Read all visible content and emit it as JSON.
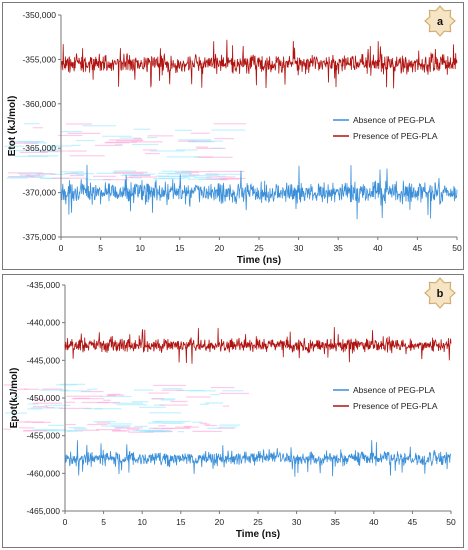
{
  "chart_data": [
    {
      "panel": "a",
      "type": "line",
      "badge": "a",
      "xlabel": "Time (ns)",
      "ylabel": "Etot (kJ/mol)",
      "xlim": [
        0,
        50
      ],
      "ylim": [
        -375000,
        -350000
      ],
      "xticks": [
        0,
        5,
        10,
        15,
        20,
        25,
        30,
        35,
        40,
        45,
        50
      ],
      "xtick_labels": [
        "0",
        "5",
        "10",
        "15",
        "20",
        "25",
        "30",
        "35",
        "40",
        "45",
        "50"
      ],
      "yticks": [
        -350000,
        -355000,
        -360000,
        -365000,
        -370000,
        -375000
      ],
      "ytick_labels": [
        "-350,000",
        "-355,000",
        "-360,000",
        "-365,000",
        "-370,000",
        "-375,000"
      ],
      "legend_position": "right",
      "series": [
        {
          "name": "Absence of PEG-PLA",
          "color": "#3b8fd9",
          "mean": -370000,
          "spread": 900,
          "min": -373000,
          "max": -366500
        },
        {
          "name": "Presence of PEG-PLA",
          "color": "#b0120f",
          "mean": -355500,
          "spread": 800,
          "min": -358500,
          "max": -352000
        }
      ]
    },
    {
      "panel": "b",
      "type": "line",
      "badge": "b",
      "xlabel": "Time (ns)",
      "ylabel": "Epot(kJ/mol)",
      "xlim": [
        0,
        50
      ],
      "ylim": [
        -465000,
        -435000
      ],
      "xticks": [
        0,
        5,
        10,
        15,
        20,
        25,
        30,
        35,
        40,
        45,
        50
      ],
      "xtick_labels": [
        "0",
        "5",
        "10",
        "15",
        "20",
        "25",
        "30",
        "35",
        "40",
        "45",
        "50"
      ],
      "yticks": [
        -435000,
        -440000,
        -445000,
        -450000,
        -455000,
        -460000,
        -465000
      ],
      "ytick_labels": [
        "-435,000",
        "-440,000",
        "-445,000",
        "-450,000",
        "-455,000",
        "-460,000",
        "-465,000"
      ],
      "legend_position": "right",
      "series": [
        {
          "name": "Absence of PEG-PLA",
          "color": "#3b8fd9",
          "mean": -458000,
          "spread": 700,
          "min": -460500,
          "max": -455500
        },
        {
          "name": "Presence of PEG-PLA",
          "color": "#b0120f",
          "mean": -443000,
          "spread": 700,
          "min": -445500,
          "max": -440000
        }
      ]
    }
  ]
}
